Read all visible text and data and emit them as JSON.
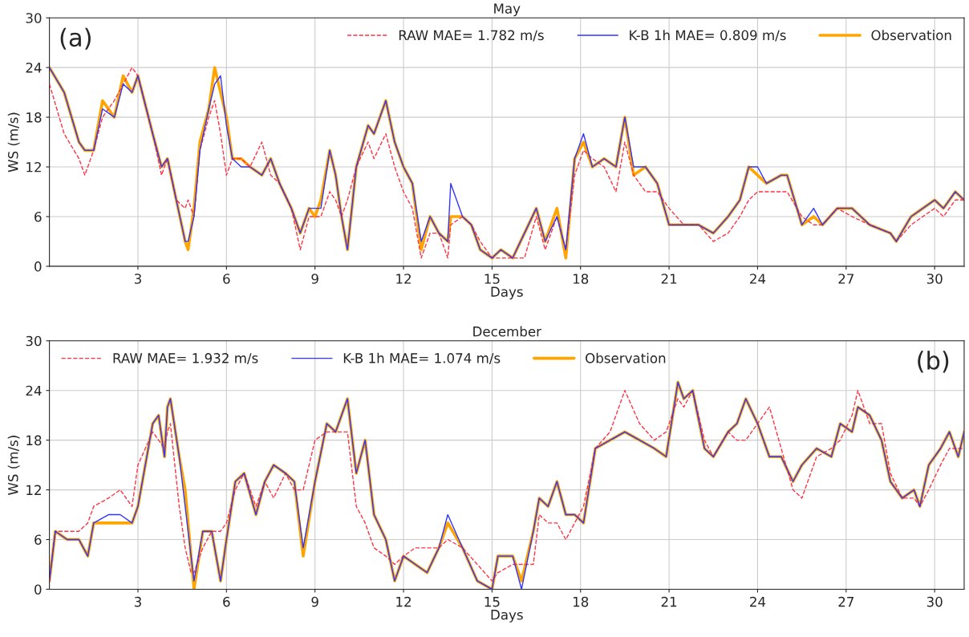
{
  "chart_data": [
    {
      "type": "line",
      "title": "May",
      "xlabel": "Days",
      "ylabel": "WS (m/s)",
      "annotations": [
        "(a)"
      ],
      "legend": "top right",
      "grid": true,
      "xlim": [
        0,
        31
      ],
      "xticks": [
        3,
        6,
        9,
        12,
        15,
        18,
        21,
        24,
        27,
        30
      ],
      "ylim": [
        0,
        30
      ],
      "yticks": [
        0,
        6,
        12,
        18,
        24,
        30
      ],
      "x": [
        0,
        0.5,
        1,
        1.2,
        1.5,
        1.8,
        2.2,
        2.5,
        2.8,
        3.0,
        3.5,
        3.8,
        4.0,
        4.3,
        4.6,
        4.7,
        4.9,
        5.1,
        5.4,
        5.6,
        5.8,
        6.0,
        6.2,
        6.5,
        6.8,
        7.2,
        7.5,
        7.8,
        8.2,
        8.5,
        8.8,
        9.0,
        9.2,
        9.5,
        9.7,
        9.9,
        10.1,
        10.4,
        10.8,
        11.0,
        11.4,
        11.7,
        12.0,
        12.3,
        12.6,
        12.9,
        13.2,
        13.5,
        13.6,
        14.0,
        14.3,
        14.6,
        15.0,
        15.3,
        15.7,
        16.1,
        16.5,
        16.8,
        17.2,
        17.5,
        17.8,
        18.1,
        18.4,
        18.8,
        19.2,
        19.5,
        19.8,
        20.2,
        20.6,
        21.0,
        21.5,
        22.0,
        22.5,
        23.0,
        23.4,
        23.7,
        24.0,
        24.3,
        24.8,
        25.0,
        25.5,
        25.9,
        26.2,
        26.7,
        27.2,
        27.8,
        28.5,
        28.7,
        29.2,
        30.0,
        30.3,
        30.7,
        31.0
      ],
      "series": [
        {
          "name": "RAW MAE= 1.782 m/s",
          "color": "#ff3344",
          "line_style": "dashed",
          "values": [
            22,
            16,
            13,
            11,
            14,
            18,
            20,
            22,
            24,
            23,
            16,
            11,
            13,
            8,
            7,
            8,
            6,
            14,
            18,
            20,
            16,
            11,
            13,
            13,
            12,
            15,
            11,
            10,
            7,
            2,
            6,
            6,
            6,
            9,
            8,
            6,
            8,
            12,
            15,
            13,
            16,
            12,
            9,
            7,
            1,
            4,
            4,
            1,
            5,
            6,
            5,
            3,
            1,
            1,
            1,
            1,
            6,
            2,
            6,
            2,
            11,
            14,
            13,
            12,
            9,
            15,
            11,
            9,
            9,
            7,
            5,
            5,
            3,
            4,
            6,
            8,
            9,
            9,
            9,
            9,
            6,
            5,
            5,
            7,
            6,
            5,
            4,
            3,
            5,
            7,
            6,
            8,
            8
          ]
        },
        {
          "name": "K-B 1h MAE= 0.809 m/s",
          "color": "#3333ff",
          "line_style": "solid",
          "values": [
            24,
            21,
            15,
            14,
            14,
            19,
            18,
            22,
            21,
            23,
            16,
            12,
            13,
            8,
            3,
            3,
            6,
            14,
            19,
            22,
            23,
            17,
            13,
            12,
            12,
            11,
            13,
            10,
            7,
            4,
            7,
            7,
            7,
            14,
            11,
            6,
            2,
            12,
            17,
            16,
            20,
            15,
            12,
            10,
            3,
            6,
            4,
            3,
            10,
            6,
            5,
            2,
            1,
            2,
            1,
            4,
            7,
            3,
            6,
            2,
            13,
            16,
            12,
            13,
            12,
            18,
            12,
            12,
            10,
            5,
            5,
            5,
            4,
            6,
            8,
            12,
            12,
            10,
            11,
            11,
            5,
            7,
            5,
            7,
            7,
            5,
            4,
            3,
            6,
            8,
            7,
            9,
            8
          ]
        },
        {
          "name": "Observation",
          "color": "#ffa500",
          "line_style": "solid",
          "values": [
            24,
            21,
            15,
            14,
            14,
            20,
            18,
            23,
            21,
            23,
            16,
            12,
            13,
            8,
            3,
            2,
            7,
            15,
            19,
            24,
            21,
            18,
            13,
            13,
            12,
            11,
            13,
            10,
            7,
            4,
            7,
            6,
            8,
            14,
            11,
            6,
            2,
            12,
            17,
            16,
            20,
            15,
            12,
            10,
            2,
            6,
            4,
            3,
            6,
            6,
            5,
            2,
            1,
            2,
            1,
            4,
            7,
            3,
            7,
            1,
            13,
            15,
            12,
            13,
            12,
            18,
            11,
            12,
            10,
            5,
            5,
            5,
            4,
            6,
            8,
            12,
            11,
            10,
            11,
            11,
            5,
            6,
            5,
            7,
            7,
            5,
            4,
            3,
            6,
            8,
            7,
            9,
            8
          ]
        }
      ]
    },
    {
      "type": "line",
      "title": "December",
      "xlabel": "Days",
      "ylabel": "WS (m/s)",
      "annotations": [
        "(b)"
      ],
      "legend": "top left",
      "grid": true,
      "xlim": [
        0,
        31
      ],
      "xticks": [
        3,
        6,
        9,
        12,
        15,
        18,
        21,
        24,
        27,
        30
      ],
      "ylim": [
        0,
        30
      ],
      "yticks": [
        0,
        6,
        12,
        18,
        24,
        30
      ],
      "x": [
        0,
        0.2,
        0.6,
        1.0,
        1.3,
        1.5,
        2.0,
        2.4,
        2.8,
        3.0,
        3.5,
        3.7,
        3.9,
        4.0,
        4.1,
        4.4,
        4.6,
        4.8,
        4.9,
        5.2,
        5.5,
        5.8,
        6.0,
        6.3,
        6.6,
        7.0,
        7.3,
        7.6,
        8.0,
        8.3,
        8.6,
        9.0,
        9.4,
        9.7,
        10.1,
        10.4,
        10.7,
        11.0,
        11.4,
        11.7,
        12.0,
        12.4,
        12.8,
        13.2,
        13.5,
        14.0,
        14.5,
        15.0,
        15.2,
        15.7,
        16.0,
        16.4,
        16.6,
        16.9,
        17.2,
        17.5,
        17.8,
        18.1,
        18.5,
        19.0,
        19.5,
        20.0,
        20.5,
        20.9,
        21.3,
        21.5,
        21.8,
        22.2,
        22.5,
        23.0,
        23.3,
        23.6,
        24.0,
        24.4,
        24.8,
        25.2,
        25.5,
        26.0,
        26.5,
        26.8,
        27.2,
        27.4,
        27.8,
        28.2,
        28.5,
        28.9,
        29.3,
        29.5,
        29.8,
        30.2,
        30.5,
        30.8,
        31
      ],
      "series": [
        {
          "name": "RAW MAE= 1.932 m/s",
          "color": "#ff3344",
          "line_style": "dashed",
          "values": [
            1,
            7,
            7,
            7,
            8,
            10,
            11,
            12,
            10,
            15,
            19,
            18,
            17,
            19,
            20,
            10,
            5,
            2,
            2,
            5,
            7,
            7,
            8,
            12,
            14,
            10,
            13,
            11,
            14,
            12,
            12,
            18,
            19,
            19,
            19,
            10,
            8,
            5,
            4,
            3,
            4,
            5,
            5,
            5,
            6,
            5,
            3,
            1,
            2,
            3,
            3,
            3,
            9,
            8,
            8,
            6,
            8,
            10,
            17,
            19,
            24,
            20,
            18,
            19,
            23,
            22,
            24,
            18,
            16,
            19,
            18,
            18,
            20,
            22,
            17,
            12,
            11,
            16,
            17,
            18,
            21,
            24,
            20,
            20,
            14,
            11,
            11,
            10,
            12,
            15,
            17,
            17,
            17
          ]
        },
        {
          "name": "K-B 1h MAE= 1.074 m/s",
          "color": "#3333ff",
          "line_style": "solid",
          "values": [
            1,
            7,
            6,
            6,
            4,
            8,
            9,
            9,
            8,
            10,
            20,
            21,
            16,
            22,
            23,
            16,
            10,
            4,
            1,
            7,
            7,
            1,
            6,
            13,
            14,
            9,
            13,
            15,
            14,
            13,
            5,
            13,
            20,
            19,
            23,
            14,
            18,
            9,
            6,
            1,
            4,
            3,
            2,
            5,
            9,
            5,
            1,
            0,
            4,
            4,
            0,
            7,
            11,
            10,
            13,
            9,
            9,
            8,
            17,
            18,
            19,
            18,
            17,
            16,
            25,
            23,
            24,
            17,
            16,
            19,
            20,
            23,
            20,
            16,
            16,
            13,
            15,
            17,
            16,
            20,
            19,
            22,
            21,
            18,
            13,
            11,
            12,
            10,
            15,
            17,
            19,
            16,
            19
          ]
        },
        {
          "name": "Observation",
          "color": "#ffa500",
          "line_style": "solid",
          "values": [
            1,
            7,
            6,
            6,
            4,
            8,
            8,
            8,
            8,
            10,
            20,
            21,
            16,
            22,
            23,
            16,
            12,
            4,
            0,
            7,
            7,
            1,
            6,
            13,
            14,
            9,
            13,
            15,
            14,
            13,
            4,
            13,
            20,
            19,
            23,
            14,
            18,
            9,
            6,
            1,
            4,
            3,
            2,
            5,
            8,
            5,
            1,
            0,
            4,
            4,
            1,
            7,
            11,
            10,
            13,
            9,
            9,
            8,
            17,
            18,
            19,
            18,
            17,
            16,
            25,
            23,
            24,
            17,
            16,
            19,
            20,
            23,
            20,
            16,
            16,
            13,
            15,
            17,
            16,
            20,
            19,
            22,
            21,
            18,
            13,
            11,
            12,
            10,
            15,
            17,
            19,
            16,
            19
          ]
        }
      ]
    }
  ]
}
